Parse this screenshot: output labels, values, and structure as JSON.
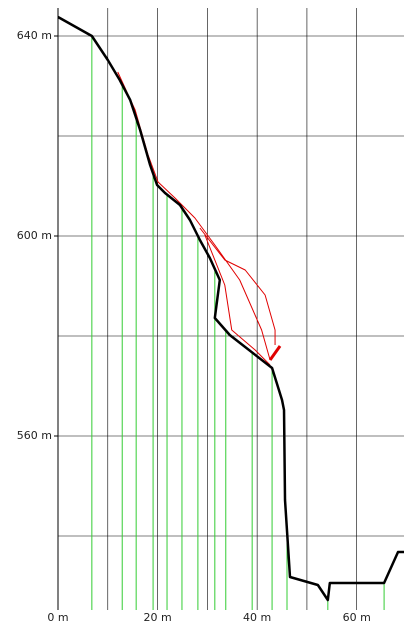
{
  "chart_data": {
    "type": "line",
    "xlim": [
      0,
      69.5
    ],
    "ylim": [
      525.2,
      645.6
    ],
    "xticks": [
      {
        "value": 0,
        "label": "0 m"
      },
      {
        "value": 10,
        "label": null
      },
      {
        "value": 20,
        "label": "20 m"
      },
      {
        "value": 30,
        "label": null
      },
      {
        "value": 40,
        "label": "40 m"
      },
      {
        "value": 50,
        "label": null
      },
      {
        "value": 60,
        "label": "60 m"
      }
    ],
    "yticks": [
      {
        "value": 540,
        "label": null
      },
      {
        "value": 560,
        "label": "560 m"
      },
      {
        "value": 580,
        "label": null
      },
      {
        "value": 600,
        "label": "600 m"
      },
      {
        "value": 620,
        "label": null
      },
      {
        "value": 640,
        "label": "640 m"
      }
    ],
    "grid": true,
    "sections": {
      "color": "#33cc33",
      "x": [
        6.8,
        12.9,
        15.7,
        19.1,
        21.9,
        24.9,
        28.1,
        31.5,
        33.7,
        39.0,
        43.0,
        46.0,
        54.2,
        65.5
      ]
    },
    "series": [
      {
        "color": "#e00000",
        "width": 1,
        "x": [
          12.0,
          15.5,
          18.1,
          20.1,
          23.5,
          27.5,
          31.5,
          36.5,
          40.9,
          42.6
        ],
        "y": [
          632.8,
          625.2,
          616.2,
          610.8,
          607.6,
          603.6,
          598.2,
          591.2,
          581.2,
          575.2
        ]
      },
      {
        "color": "#e00000",
        "width": 1,
        "x": [
          28.5,
          33.5,
          37.6,
          41.6,
          43.6,
          43.6
        ],
        "y": [
          601.6,
          595.2,
          593.2,
          588.2,
          581.2,
          578.2
        ]
      },
      {
        "color": "#e00000",
        "width": 1,
        "x": [
          29.5,
          33.5,
          34.9,
          39.6,
          42.6
        ],
        "y": [
          600.2,
          590.2,
          581.2,
          577.2,
          574.2
        ]
      },
      {
        "color": "#e00000",
        "width": 3,
        "x": [
          42.6,
          44.6
        ],
        "y": [
          575.2,
          578.0
        ]
      },
      {
        "color": "#000000",
        "width": 2.5,
        "x": [
          0,
          6.8,
          10.0,
          12.4,
          14.5,
          16.5,
          18.5,
          19.9,
          21.5,
          24.5,
          26.5,
          28.5,
          30.5,
          32.5,
          31.5,
          34.5,
          43.0,
          45.0,
          45.4,
          45.6,
          46.6,
          52.2,
          54.2,
          54.6,
          65.5,
          68.3,
          69.5
        ],
        "y": [
          643.8,
          640.0,
          635.2,
          631.2,
          627.2,
          621.2,
          614.2,
          610.2,
          608.6,
          606.2,
          603.2,
          599.2,
          595.6,
          591.2,
          583.6,
          580.2,
          573.6,
          567.2,
          565.2,
          547.2,
          531.8,
          530.2,
          527.2,
          530.6,
          530.6,
          536.8,
          536.8
        ]
      }
    ]
  }
}
